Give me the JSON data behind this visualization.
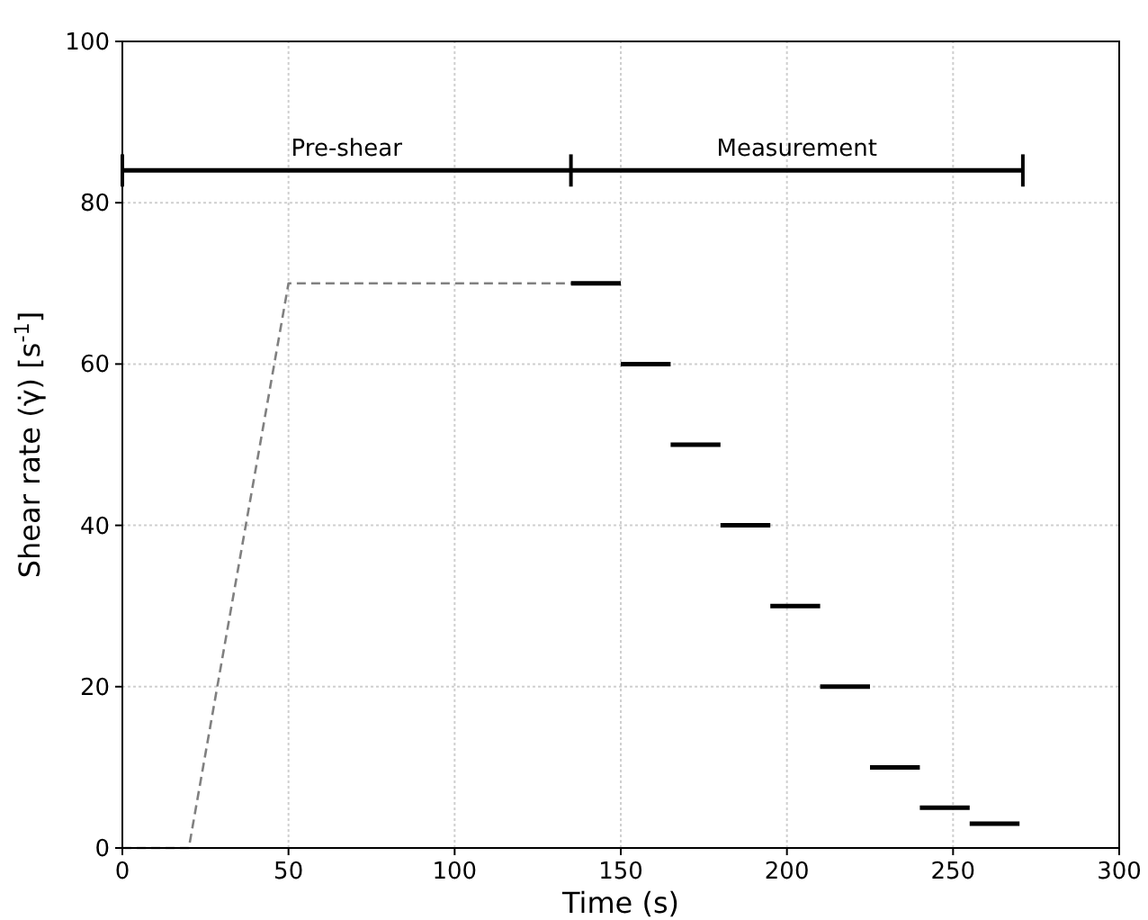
{
  "chart_data": {
    "type": "line",
    "xlabel": "Time (s)",
    "ylabel": "Shear rate (γ̇) [s$^{-1}$]",
    "xlim": [
      0,
      300
    ],
    "ylim": [
      0,
      100
    ],
    "xticks": [
      0,
      50,
      100,
      150,
      200,
      250,
      300
    ],
    "yticks": [
      0,
      20,
      40,
      60,
      80,
      100
    ],
    "grid": true,
    "series": [
      {
        "color": "#808080",
        "line_style": "dashed",
        "x": [
          0,
          20,
          50,
          135
        ],
        "values": [
          0,
          0,
          70,
          70
        ]
      },
      {
        "color": "#000000",
        "line_style": "solid",
        "x": [
          135,
          150
        ],
        "values": [
          70,
          70
        ]
      },
      {
        "color": "#000000",
        "line_style": "solid",
        "x": [
          150,
          165
        ],
        "values": [
          60,
          60
        ]
      },
      {
        "color": "#000000",
        "line_style": "solid",
        "x": [
          165,
          180
        ],
        "values": [
          50,
          50
        ]
      },
      {
        "color": "#000000",
        "line_style": "solid",
        "x": [
          180,
          195
        ],
        "values": [
          40,
          40
        ]
      },
      {
        "color": "#000000",
        "line_style": "solid",
        "x": [
          195,
          210
        ],
        "values": [
          30,
          30
        ]
      },
      {
        "color": "#000000",
        "line_style": "solid",
        "x": [
          210,
          225
        ],
        "values": [
          20,
          20
        ]
      },
      {
        "color": "#000000",
        "line_style": "solid",
        "x": [
          225,
          240
        ],
        "values": [
          10,
          10
        ]
      },
      {
        "color": "#000000",
        "line_style": "solid",
        "x": [
          240,
          255
        ],
        "values": [
          5,
          5
        ]
      },
      {
        "color": "#000000",
        "line_style": "solid",
        "x": [
          255,
          270
        ],
        "values": [
          3,
          3
        ]
      },
      {
        "color": "#000000",
        "line_style": "solid",
        "x": [
          0,
          135,
          271
        ],
        "values": [
          84,
          84,
          84
        ],
        "errors": [
          2,
          2,
          2
        ]
      }
    ],
    "annotations": [
      {
        "text": "Pre-shear",
        "x": 67.5,
        "y": 84
      },
      {
        "text": "Measurement",
        "x": 203,
        "y": 84
      }
    ]
  }
}
